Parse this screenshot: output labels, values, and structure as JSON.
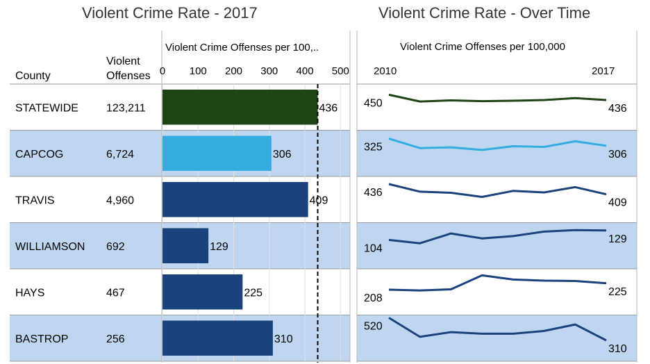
{
  "left_title": "Violent Crime Rate - 2017",
  "right_title": "Violent Crime Rate - Over Time",
  "headers": {
    "county": "County",
    "offenses_line1": "Violent",
    "offenses_line2": "Offenses",
    "bar_axis_title": "Violent Crime Offenses per 100,..",
    "trend_axis_title": "Violent Crime Offenses per 100,000",
    "trend_start_year": "2010",
    "trend_end_year": "2017"
  },
  "colors": {
    "statewide": "#1e4314",
    "capcog": "#35ace0",
    "county": "#1a427d",
    "band": "#bed6ef",
    "reference_line": "#000000"
  },
  "chart_data": [
    {
      "type": "bar",
      "title": "Violent Crime Rate - 2017",
      "xlabel": "Violent Crime Offenses per 100,..",
      "xlim": [
        0,
        520
      ],
      "xticks": [
        0,
        100,
        200,
        300,
        400,
        500
      ],
      "reference_line": 436,
      "categories": [
        "STATEWIDE",
        "CAPCOG",
        "TRAVIS",
        "WILLIAMSON",
        "HAYS",
        "BASTROP"
      ],
      "offenses": [
        "123,211",
        "6,724",
        "4,960",
        "692",
        "467",
        "256"
      ],
      "values": [
        436,
        306,
        409,
        129,
        225,
        310
      ]
    },
    {
      "type": "line",
      "title": "Violent Crime Rate - Over Time",
      "xlabel": "Violent Crime Offenses per 100,000",
      "x": [
        2010,
        2011,
        2012,
        2013,
        2014,
        2015,
        2016,
        2017
      ],
      "series": [
        {
          "name": "STATEWIDE",
          "values": [
            450,
            432,
            435,
            433,
            434,
            436,
            441,
            436
          ]
        },
        {
          "name": "CAPCOG",
          "values": [
            325,
            300,
            302,
            295,
            305,
            303,
            318,
            306
          ]
        },
        {
          "name": "TRAVIS",
          "values": [
            436,
            416,
            413,
            402,
            418,
            414,
            428,
            409
          ]
        },
        {
          "name": "WILLIAMSON",
          "values": [
            104,
            95,
            121,
            108,
            114,
            126,
            130,
            129
          ]
        },
        {
          "name": "HAYS",
          "values": [
            208,
            206,
            209,
            246,
            235,
            232,
            231,
            225
          ]
        },
        {
          "name": "BASTROP",
          "values": [
            520,
            343,
            387,
            372,
            372,
            398,
            458,
            310
          ]
        }
      ]
    }
  ]
}
